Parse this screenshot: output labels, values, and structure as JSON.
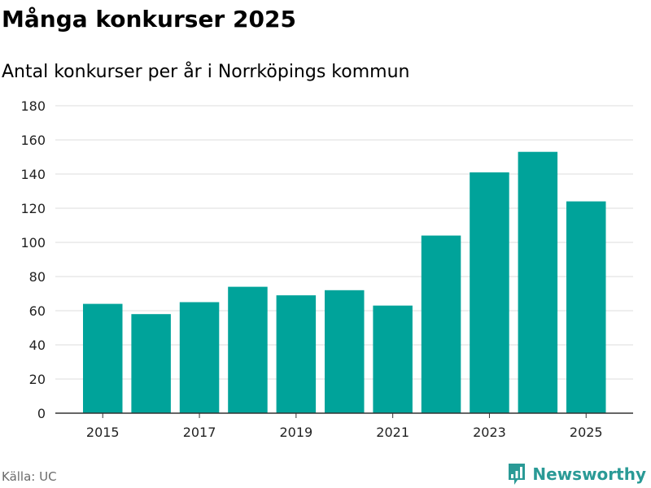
{
  "title": "Många konkurser 2025",
  "subtitle": "Antal konkurser per år i Norrköpings kommun",
  "source": "Källa: UC",
  "brand": {
    "name": "Newsworthy",
    "icon": "newsworthy-logo-icon",
    "color": "#2a9a96"
  },
  "colors": {
    "bar": "#00a39a",
    "grid": "#dddddd",
    "axis": "#333333"
  },
  "chart_data": {
    "type": "bar",
    "title": "Många konkurser 2025",
    "subtitle": "Antal konkurser per år i Norrköpings kommun",
    "xlabel": "",
    "ylabel": "",
    "categories": [
      "2015",
      "2016",
      "2017",
      "2018",
      "2019",
      "2020",
      "2021",
      "2022",
      "2023",
      "2024",
      "2025"
    ],
    "values": [
      64,
      58,
      65,
      74,
      69,
      72,
      63,
      104,
      141,
      153,
      124
    ],
    "x_tick_labels": [
      "2015",
      "2017",
      "2019",
      "2021",
      "2023",
      "2025"
    ],
    "y_ticks": [
      0,
      20,
      40,
      60,
      80,
      100,
      120,
      140,
      160,
      180
    ],
    "ylim": [
      0,
      180
    ],
    "grid": true,
    "legend": "none"
  }
}
